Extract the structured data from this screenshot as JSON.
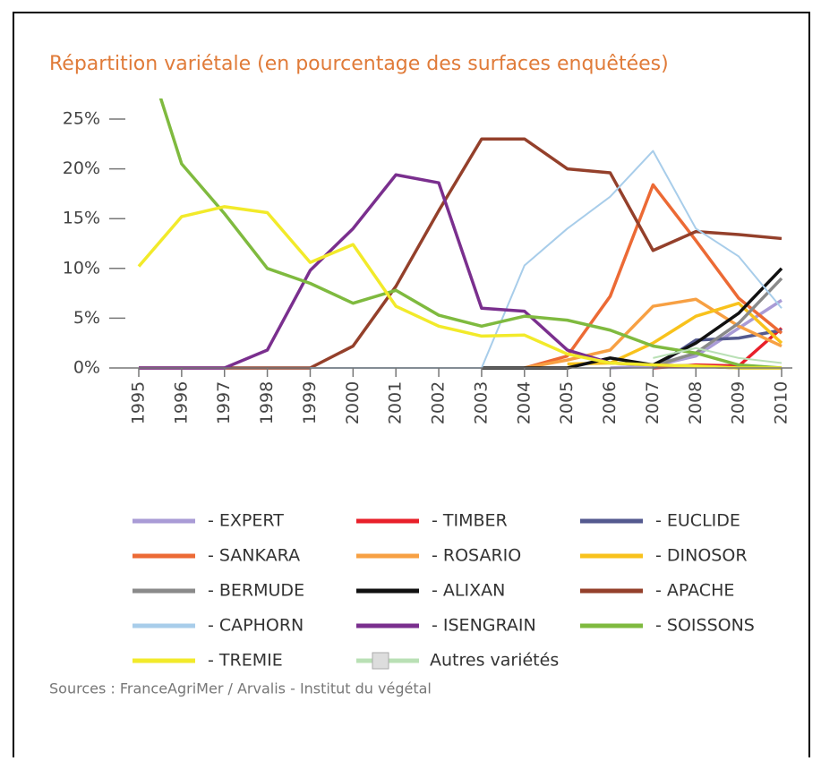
{
  "chart_data": {
    "type": "line",
    "title": "Répartition variétale (en pourcentage des surfaces enquêtées)",
    "source": "Sources : FranceAgriMer / Arvalis - Institut du végétal",
    "categories": [
      "1995",
      "1996",
      "1997",
      "1998",
      "1999",
      "2000",
      "2001",
      "2002",
      "2003",
      "2004",
      "2005",
      "2006",
      "2007",
      "2008",
      "2009",
      "2010"
    ],
    "ylim": [
      0,
      25
    ],
    "yticks": [
      {
        "value": 0,
        "label": "0%"
      },
      {
        "value": 5,
        "label": "5%"
      },
      {
        "value": 10,
        "label": "10%"
      },
      {
        "value": 15,
        "label": "15%"
      },
      {
        "value": 20,
        "label": "20%"
      },
      {
        "value": 25,
        "label": "25%"
      }
    ],
    "series": [
      {
        "name": "- EXPERT",
        "color": "#a99bd6",
        "values": [
          null,
          null,
          null,
          null,
          null,
          null,
          null,
          null,
          null,
          null,
          null,
          0,
          0.2,
          1.2,
          4,
          6.8
        ]
      },
      {
        "name": "- TIMBER",
        "color": "#e8202a",
        "values": [
          null,
          null,
          null,
          null,
          null,
          null,
          null,
          null,
          null,
          null,
          null,
          null,
          0,
          0.3,
          0.2,
          4
        ]
      },
      {
        "name": "- EUCLIDE",
        "color": "#545a8f",
        "values": [
          null,
          null,
          null,
          null,
          null,
          null,
          null,
          null,
          null,
          null,
          null,
          null,
          0,
          2.8,
          3,
          3.8
        ]
      },
      {
        "name": "- SANKARA",
        "color": "#ec6a35",
        "values": [
          null,
          null,
          null,
          null,
          null,
          null,
          null,
          null,
          null,
          0,
          1.2,
          7.2,
          18.4,
          12.8,
          7,
          3.5
        ]
      },
      {
        "name": "- ROSARIO",
        "color": "#f7a043",
        "values": [
          null,
          null,
          null,
          null,
          null,
          null,
          null,
          null,
          null,
          0,
          0.8,
          1.8,
          6.2,
          6.9,
          4.2,
          2.2
        ]
      },
      {
        "name": "- DINOSOR",
        "color": "#f8c21c",
        "values": [
          null,
          null,
          null,
          null,
          null,
          null,
          null,
          null,
          null,
          null,
          0.4,
          0.5,
          2.5,
          5.2,
          6.5,
          2.5
        ]
      },
      {
        "name": "- BERMUDE",
        "color": "#8a8a8a",
        "values": [
          null,
          null,
          null,
          null,
          null,
          null,
          null,
          null,
          null,
          null,
          null,
          null,
          0.2,
          1.5,
          4.5,
          9
        ]
      },
      {
        "name": "- ALIXAN",
        "color": "#111111",
        "values": [
          null,
          null,
          null,
          null,
          null,
          null,
          null,
          null,
          0,
          0,
          0,
          1,
          0.3,
          2.5,
          5.5,
          10
        ]
      },
      {
        "name": "- APACHE",
        "color": "#94402b",
        "values": [
          0,
          0,
          0,
          0,
          0,
          2.2,
          8.2,
          15.8,
          23,
          23,
          20,
          19.6,
          11.8,
          13.7,
          13.4,
          13
        ]
      },
      {
        "name": "- CAPHORN",
        "color": "#a8cdea",
        "values": [
          null,
          null,
          null,
          null,
          0,
          0,
          0,
          0,
          0,
          10.3,
          14,
          17.2,
          21.8,
          14,
          11.2,
          6
        ]
      },
      {
        "name": "- ISENGRAIN",
        "color": "#7a2f8e",
        "values": [
          0,
          0,
          0,
          1.8,
          9.8,
          14,
          19.4,
          18.6,
          6,
          5.7,
          1.8,
          0.5,
          0.3,
          0.2,
          0,
          0
        ]
      },
      {
        "name": "- SOISSONS",
        "color": "#7fba3f",
        "values": [
          34,
          20.5,
          15.5,
          10,
          8.5,
          6.5,
          7.8,
          5.3,
          4.2,
          5.2,
          4.8,
          3.8,
          2.2,
          1.5,
          0.3,
          0
        ]
      },
      {
        "name": "- TREMIE",
        "color": "#f2ea2a",
        "values": [
          10.2,
          15.2,
          16.2,
          15.6,
          10.6,
          12.4,
          6.2,
          4.2,
          3.2,
          3.3,
          1.4,
          0.5,
          0.3,
          0.2,
          0,
          0
        ]
      },
      {
        "name": "Autres variétés",
        "color": "#b9e0b5",
        "values": [
          null,
          null,
          null,
          null,
          null,
          null,
          null,
          null,
          null,
          null,
          null,
          null,
          1,
          2,
          1,
          0.5
        ]
      }
    ]
  }
}
